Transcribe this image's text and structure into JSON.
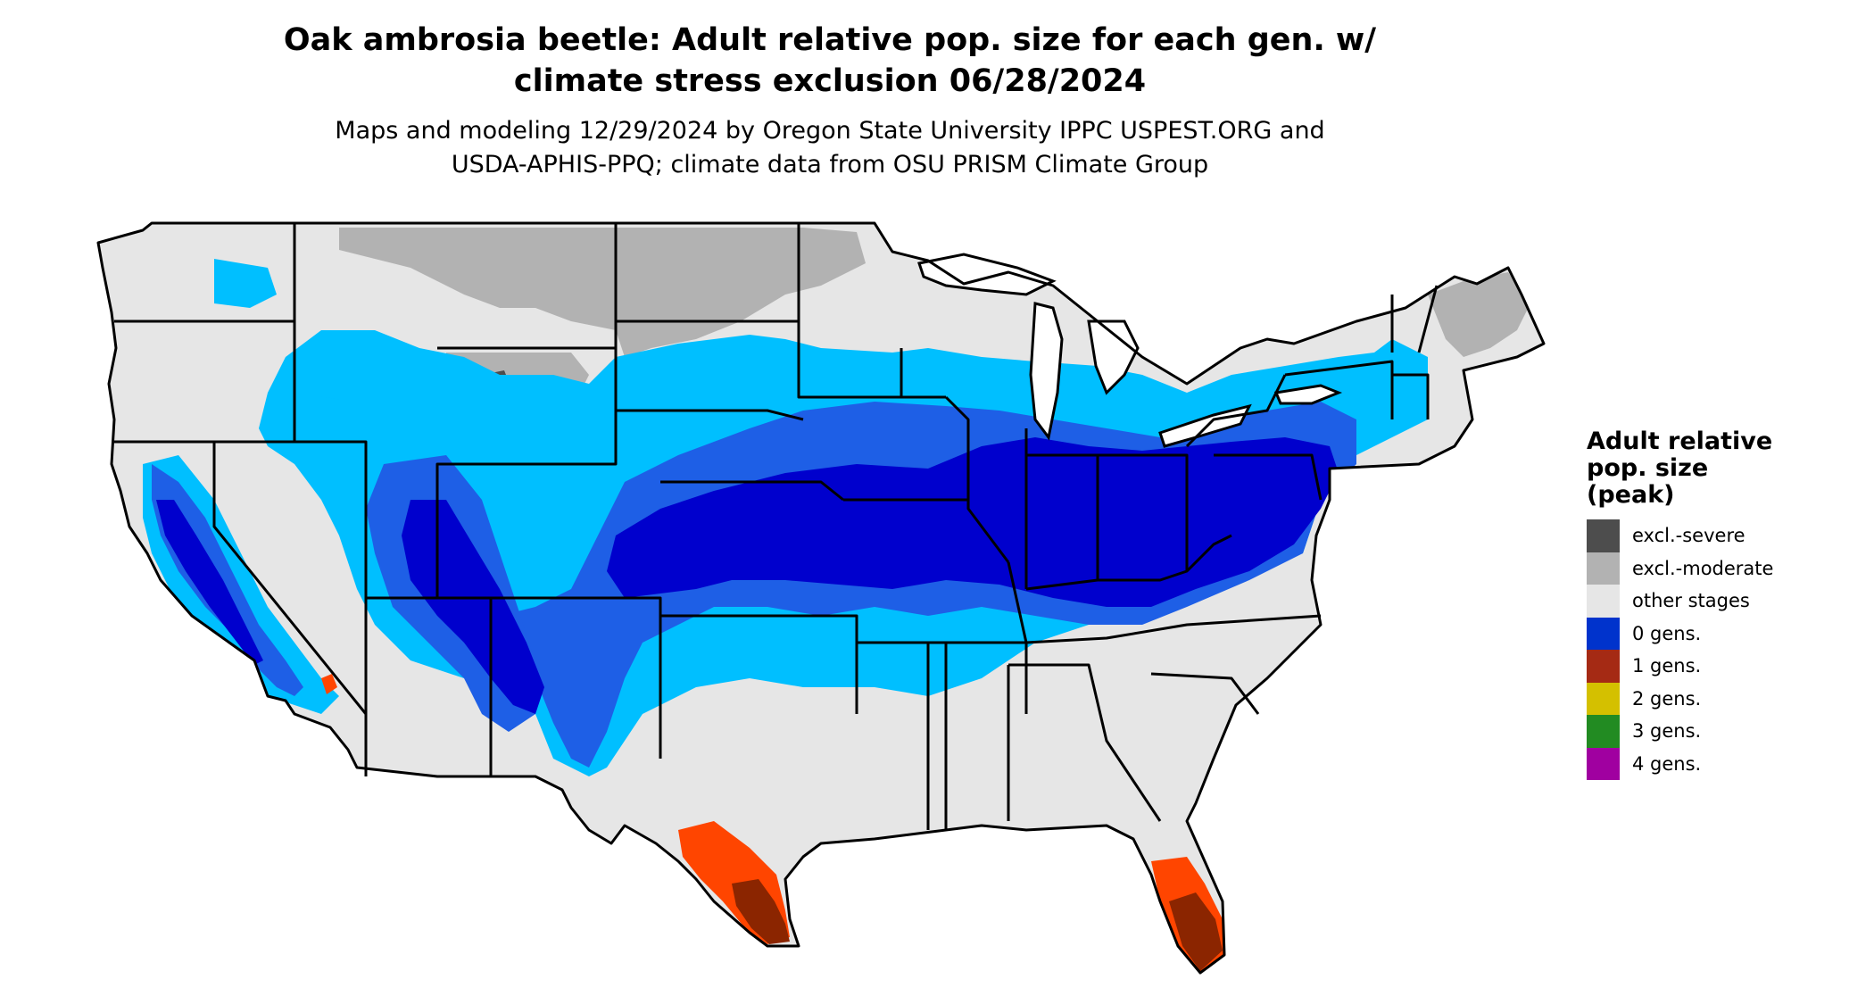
{
  "header": {
    "title_line1": "Oak ambrosia beetle: Adult relative pop. size for each gen. w/",
    "title_line2": "climate stress exclusion 06/28/2024",
    "subtitle_line1": "Maps and modeling 12/29/2024 by Oregon State University IPPC USPEST.ORG and",
    "subtitle_line2": "USDA-APHIS-PPQ; climate data from OSU PRISM Climate Group"
  },
  "legend": {
    "title_line1": "Adult relative",
    "title_line2": "pop. size",
    "title_line3": "(peak)",
    "items": [
      {
        "label": "excl.-severe",
        "color": "#4d4d4d"
      },
      {
        "label": "excl.-moderate",
        "color": "#b2b2b2"
      },
      {
        "label": "other stages",
        "color": "#e6e6e6"
      },
      {
        "label": "0 gens.",
        "color": "#0033cc"
      },
      {
        "label": "1 gens.",
        "color": "#a52a14"
      },
      {
        "label": "2 gens.",
        "color": "#d4c000"
      },
      {
        "label": "3 gens.",
        "color": "#228b22"
      },
      {
        "label": "4 gens.",
        "color": "#a000a0"
      }
    ]
  },
  "map_colors": {
    "land": "#e6e6e6",
    "excl_moderate": "#b2b2b2",
    "excl_severe": "#4d4d4d",
    "light_blue": "#00bfff",
    "mid_blue": "#1e5fe6",
    "dark_blue": "#0000cd",
    "orange": "#ff4500",
    "dark_red": "#8b2500",
    "border": "#000000",
    "water": "#ffffff"
  }
}
